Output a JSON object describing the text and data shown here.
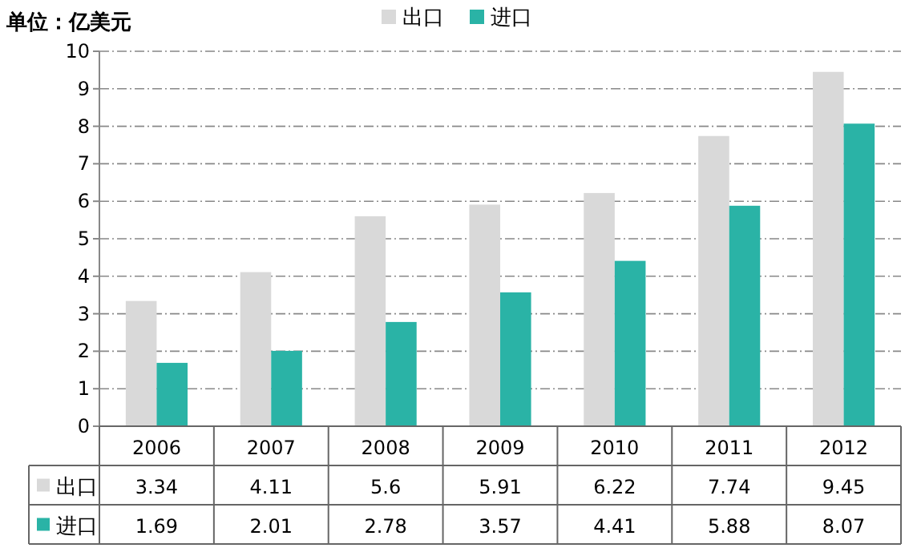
{
  "chart_data": {
    "type": "bar",
    "ylabel": "单位：亿美元",
    "categories": [
      "2006",
      "2007",
      "2008",
      "2009",
      "2010",
      "2011",
      "2012"
    ],
    "series": [
      {
        "name": "出口",
        "color": "#d9d9d9",
        "values": [
          3.34,
          4.11,
          5.6,
          5.91,
          6.22,
          7.74,
          9.45
        ]
      },
      {
        "name": "进口",
        "color": "#2ab3a6",
        "values": [
          1.69,
          2.01,
          2.78,
          3.57,
          4.41,
          5.88,
          8.07
        ]
      }
    ],
    "ylim": [
      0,
      10
    ],
    "yticks": [
      0,
      1,
      2,
      3,
      4,
      5,
      6,
      7,
      8,
      9,
      10
    ],
    "grid": "y",
    "legend": "top",
    "data_labels": true
  }
}
